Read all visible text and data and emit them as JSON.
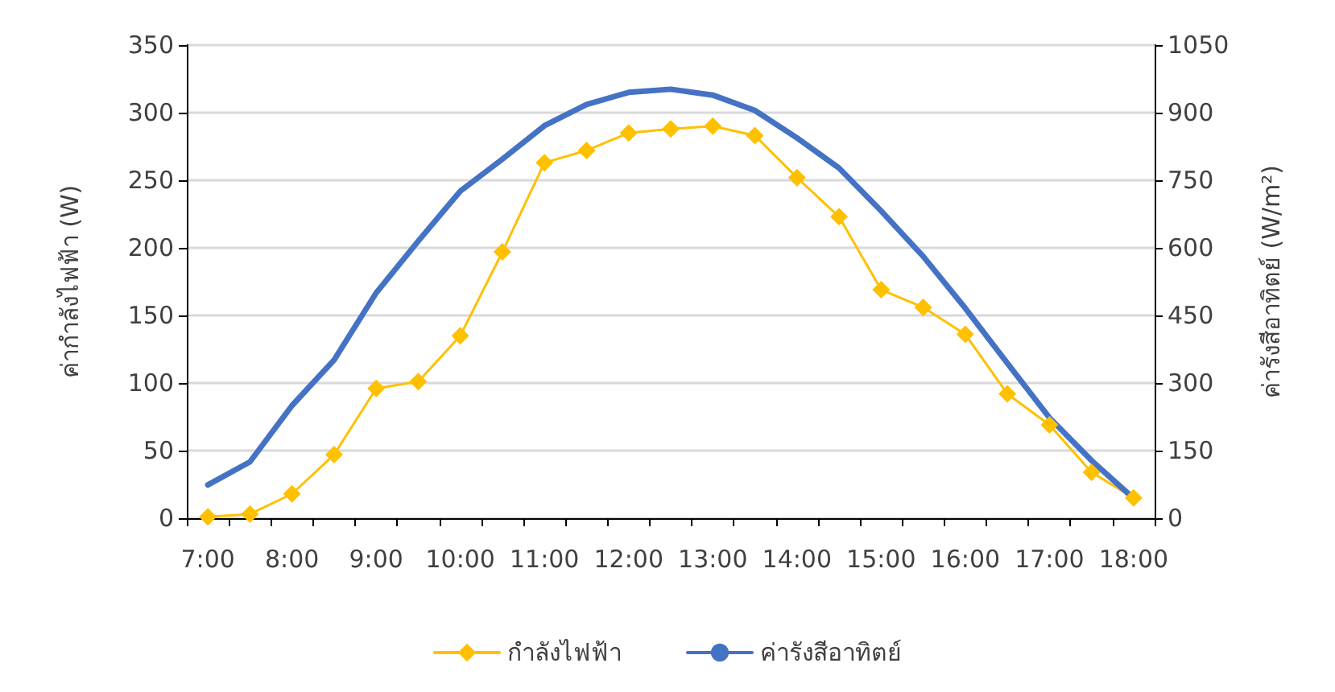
{
  "chart_data": {
    "type": "line",
    "ylabel": "ค่ากำลังไฟฟ้า (W)",
    "y2label": "ค่ารังสีอาทิตย์ (W/m²)",
    "categories": [
      "7:00",
      null,
      "8:00",
      null,
      "9:00",
      null,
      "10:00",
      null,
      "11:00",
      null,
      "12:00",
      null,
      "13:00",
      null,
      "14:00",
      null,
      "15:00",
      null,
      "16:00",
      null,
      "17:00",
      null,
      "18:00"
    ],
    "series": [
      {
        "name": "กำลังไฟฟ้า",
        "color": "#ffc000",
        "marker": "diamond",
        "values": [
          1,
          3,
          18,
          47,
          96,
          101,
          135,
          197,
          263,
          272,
          285,
          288,
          290,
          283,
          252,
          223,
          169,
          156,
          136,
          92,
          69,
          34,
          15
        ]
      },
      {
        "name": "ค่ารังสีอาทิตย์",
        "color": "#4472c4",
        "axis": "y2",
        "marker": "none",
        "values": [
          74,
          125,
          250,
          351,
          500,
          615,
          726,
          797,
          871,
          918,
          945,
          952,
          939,
          905,
          844,
          777,
          682,
          581,
          466,
          344,
          223,
          128,
          44
        ]
      }
    ],
    "ylim": [
      0,
      350
    ],
    "yticks": [
      0,
      50,
      100,
      150,
      200,
      250,
      300,
      350
    ],
    "y2lim": [
      0,
      1050
    ],
    "y2ticks": [
      0,
      150,
      300,
      450,
      600,
      750,
      900,
      1050
    ],
    "grid": "y",
    "legend": "bottom"
  }
}
